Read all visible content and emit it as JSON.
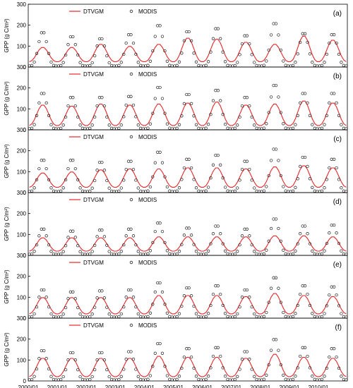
{
  "figure": {
    "x_ticks": [
      "2000/01",
      "2001/01",
      "2002/01",
      "2003/01",
      "2004/01",
      "2005/01",
      "2006/01",
      "2007/01",
      "2008/01",
      "2009/01",
      "2010/01"
    ],
    "ylabel": "GPP (g C/m²)",
    "y_ticks": [
      0,
      100,
      200,
      300
    ],
    "legend": {
      "model": "DTVGM",
      "obs": "MODIS"
    },
    "colors": {
      "model": "#e8262a",
      "obs": "#222222"
    }
  },
  "chart_data": [
    {
      "type": "line",
      "panel": "(a)",
      "xlim": [
        "2000-01",
        "2010-12"
      ],
      "ylim": [
        0,
        300
      ],
      "grid": false,
      "legend": "top-left",
      "series": [
        {
          "name": "DTVGM",
          "peaks": [
            95,
            95,
            110,
            100,
            110,
            140,
            135,
            120,
            110,
            150,
            130
          ],
          "base": 25
        },
        {
          "name": "MODIS",
          "peaks": [
            170,
            150,
            140,
            160,
            205,
            175,
            190,
            155,
            215,
            165,
            160
          ],
          "base": 5
        }
      ]
    },
    {
      "type": "line",
      "panel": "(b)",
      "xlim": [
        "2000-01",
        "2010-12"
      ],
      "ylim": [
        0,
        300
      ],
      "grid": false,
      "legend": "top-left",
      "series": [
        {
          "name": "DTVGM",
          "peaks": [
            120,
            115,
            125,
            120,
            125,
            130,
            135,
            120,
            125,
            140,
            130
          ],
          "base": 20
        },
        {
          "name": "MODIS",
          "peaks": [
            180,
            160,
            160,
            165,
            210,
            175,
            195,
            160,
            220,
            180,
            180
          ],
          "base": 5
        }
      ]
    },
    {
      "type": "line",
      "panel": "(c)",
      "xlim": [
        "2000-01",
        "2010-12"
      ],
      "ylim": [
        0,
        300
      ],
      "grid": false,
      "legend": "top-left",
      "series": [
        {
          "name": "DTVGM",
          "peaks": [
            95,
            100,
            110,
            115,
            115,
            120,
            120,
            115,
            125,
            130,
            120
          ],
          "base": 25
        },
        {
          "name": "MODIS",
          "peaks": [
            160,
            160,
            150,
            155,
            200,
            165,
            185,
            155,
            215,
            175,
            165
          ],
          "base": 5
        }
      ]
    },
    {
      "type": "line",
      "panel": "(d)",
      "xlim": [
        "2000-01",
        "2010-12"
      ],
      "ylim": [
        0,
        300
      ],
      "grid": false,
      "legend": "top-left",
      "series": [
        {
          "name": "DTVGM",
          "peaks": [
            85,
            85,
            85,
            85,
            90,
            90,
            90,
            90,
            95,
            95,
            90
          ],
          "base": 20
        },
        {
          "name": "MODIS",
          "peaks": [
            130,
            120,
            125,
            130,
            160,
            135,
            145,
            130,
            180,
            145,
            150
          ],
          "base": 5
        }
      ]
    },
    {
      "type": "line",
      "panel": "(e)",
      "xlim": [
        "2000-01",
        "2010-12"
      ],
      "ylim": [
        0,
        300
      ],
      "grid": false,
      "legend": "top-left",
      "series": [
        {
          "name": "DTVGM",
          "peaks": [
            100,
            100,
            100,
            100,
            110,
            110,
            110,
            105,
            120,
            110,
            105
          ],
          "base": 20
        },
        {
          "name": "MODIS",
          "peaks": [
            140,
            130,
            135,
            140,
            175,
            150,
            160,
            140,
            200,
            160,
            155
          ],
          "base": 5
        }
      ]
    },
    {
      "type": "line",
      "panel": "(f)",
      "xlim": [
        "2000-01",
        "2010-12"
      ],
      "ylim": [
        0,
        300
      ],
      "grid": false,
      "legend": "top-left",
      "series": [
        {
          "name": "DTVGM",
          "peaks": [
            110,
            110,
            110,
            110,
            120,
            115,
            115,
            110,
            130,
            115,
            110
          ],
          "base": 20
        },
        {
          "name": "MODIS",
          "peaks": [
            150,
            140,
            140,
            145,
            185,
            160,
            165,
            145,
            205,
            165,
            160
          ],
          "base": 5
        }
      ]
    }
  ]
}
